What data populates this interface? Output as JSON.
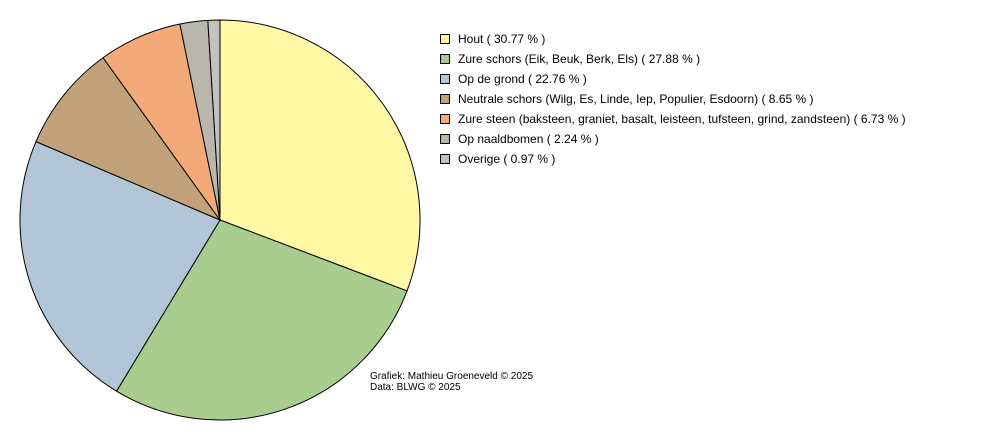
{
  "chart_data": {
    "type": "pie",
    "slices": [
      {
        "label": "Hout",
        "value": 30.77,
        "color": "#fff8a5"
      },
      {
        "label": "Zure schors (Eik, Beuk, Berk, Els)",
        "value": 27.88,
        "color": "#a8cd8f"
      },
      {
        "label": "Op de grond",
        "value": 22.76,
        "color": "#b2c6d8"
      },
      {
        "label": "Neutrale schors (Wilg, Es, Linde, Iep, Populier, Esdoorn)",
        "value": 8.65,
        "color": "#c1a27a"
      },
      {
        "label": "Zure steen (baksteen, graniet, basalt, leisteen, tufsteen, grind, zandsteen)",
        "value": 6.73,
        "color": "#f3aa78"
      },
      {
        "label": "Op naaldbomen",
        "value": 2.24,
        "color": "#b7b7ab"
      },
      {
        "label": "Overige",
        "value": 0.97,
        "color": "#c1c1c1"
      }
    ],
    "legend_position": "top-right",
    "start_angle": "top, clockwise"
  },
  "legend": {
    "items": [
      {
        "text": "Hout ( 30.77 % )",
        "color": "#fff8a5"
      },
      {
        "text": "Zure schors (Eik, Beuk, Berk, Els) ( 27.88 % )",
        "color": "#a8cd8f"
      },
      {
        "text": "Op de grond ( 22.76 % )",
        "color": "#b2c6d8"
      },
      {
        "text": "Neutrale schors (Wilg, Es, Linde, Iep, Populier, Esdoorn) ( 8.65 % )",
        "color": "#c1a27a"
      },
      {
        "text": "Zure steen (baksteen, graniet, basalt, leisteen, tufsteen, grind, zandsteen) ( 6.73 % )",
        "color": "#f3aa78"
      },
      {
        "text": "Op naaldbomen ( 2.24 % )",
        "color": "#b7b7ab"
      },
      {
        "text": "Overige ( 0.97 % )",
        "color": "#c1c1c1"
      }
    ]
  },
  "credits": {
    "line1": "Grafiek: Mathieu Groeneveld © 2025",
    "line2": "Data: BLWG © 2025"
  }
}
